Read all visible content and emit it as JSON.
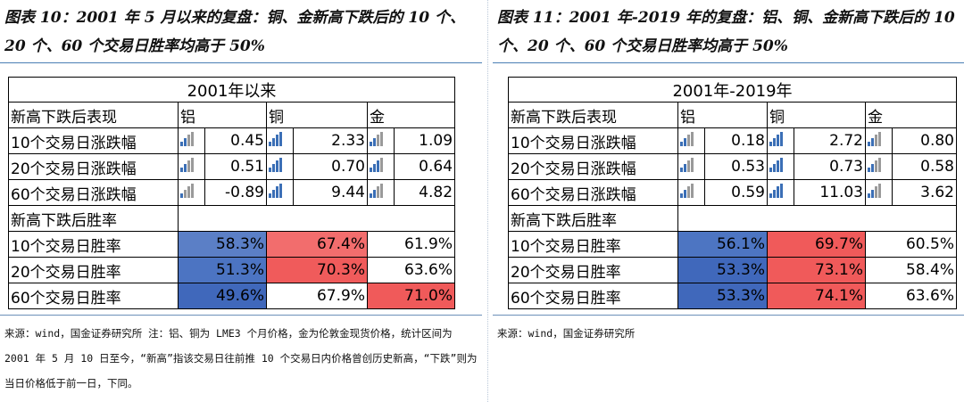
{
  "left": {
    "title": "图表 10：2001 年 5 月以来的复盘：铜、金新高下跌后的 10 个、20 个、60 个交易日胜率均高于 50%",
    "table": {
      "caption": "2001年以来",
      "header": [
        "新高下跌后表现",
        "铝",
        "铜",
        "金"
      ],
      "change_rows": [
        {
          "label": "10个交易日涨跌幅",
          "values": [
            "0.45",
            "2.33",
            "1.09"
          ],
          "levels": [
            2,
            4,
            2
          ]
        },
        {
          "label": "20个交易日涨跌幅",
          "values": [
            "0.51",
            "0.70",
            "0.64"
          ],
          "levels": [
            2,
            4,
            3
          ]
        },
        {
          "label": "60个交易日涨跌幅",
          "values": [
            "-0.89",
            "9.44",
            "4.82"
          ],
          "levels": [
            1,
            4,
            2
          ]
        }
      ],
      "win_header": "新高下跌后胜率",
      "win_rows": [
        {
          "label": "10个交易日胜率",
          "values": [
            "58.3%",
            "67.4%",
            "61.9%"
          ],
          "fills": [
            "#5b7fc6",
            "#f26d6d",
            "#ffffff"
          ]
        },
        {
          "label": "20个交易日胜率",
          "values": [
            "51.3%",
            "70.3%",
            "63.6%"
          ],
          "fills": [
            "#4c74c2",
            "#f05b5b",
            "#ffffff"
          ]
        },
        {
          "label": "60个交易日胜率",
          "values": [
            "49.6%",
            "67.9%",
            "71.0%"
          ],
          "fills": [
            "#4068bb",
            "#ffffff",
            "#f05a5a"
          ]
        }
      ]
    },
    "source": "来源：wind，国金证券研究所 注：铝、铜为 LME3 个月价格，金为伦敦金现货价格，统计区间为 2001 年 5 月 10 日至今，“新高”指该交易日往前推 10 个交易日内价格曾创历史新高，“下跌”则为当日价格低于前一日，下同。"
  },
  "right": {
    "title": "图表 11：2001 年-2019 年的复盘：铝、铜、金新高下跌后的 10 个、20 个、60 个交易日胜率均高于 50%",
    "table": {
      "caption": "2001年-2019年",
      "header": [
        "新高下跌后表现",
        "铝",
        "铜",
        "金"
      ],
      "change_rows": [
        {
          "label": "10个交易日涨跌幅",
          "values": [
            "0.18",
            "2.72",
            "0.80"
          ],
          "levels": [
            2,
            4,
            2
          ]
        },
        {
          "label": "20个交易日涨跌幅",
          "values": [
            "0.53",
            "0.73",
            "0.58"
          ],
          "levels": [
            2,
            4,
            2
          ]
        },
        {
          "label": "60个交易日涨跌幅",
          "values": [
            "0.59",
            "11.03",
            "3.62"
          ],
          "levels": [
            2,
            4,
            2
          ]
        }
      ],
      "win_header": "新高下跌后胜率",
      "win_rows": [
        {
          "label": "10个交易日胜率",
          "values": [
            "56.1%",
            "69.7%",
            "60.5%"
          ],
          "fills": [
            "#4d75c2",
            "#f05a5a",
            "#ffffff"
          ]
        },
        {
          "label": "20个交易日胜率",
          "values": [
            "53.3%",
            "73.1%",
            "58.4%"
          ],
          "fills": [
            "#4068bb",
            "#f05a5a",
            "#ffffff"
          ]
        },
        {
          "label": "60个交易日胜率",
          "values": [
            "53.3%",
            "74.1%",
            "63.6%"
          ],
          "fills": [
            "#4068bb",
            "#f05a5a",
            "#ffffff"
          ]
        }
      ]
    },
    "source": "来源：wind，国金证券研究所"
  },
  "icons": {
    "bar_icon": "signal-bars-icon",
    "bar_active": "#3b6fb6",
    "bar_inactive": "#9a9a9a"
  }
}
